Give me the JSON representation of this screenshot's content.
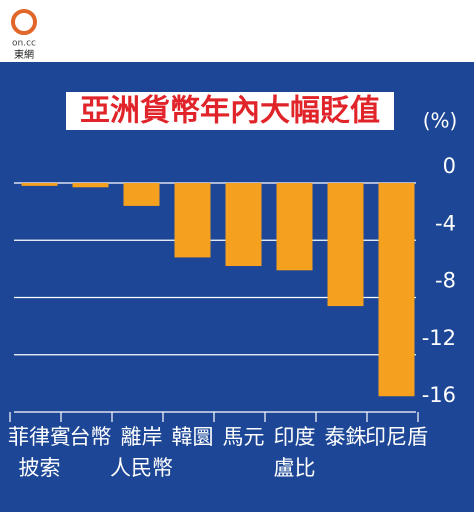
{
  "logo": {
    "mark": "on.cc",
    "name": "東網"
  },
  "chart_data": {
    "type": "bar",
    "title": "亞洲貨幣年內大幅貶值",
    "unit": "(%)",
    "categories": [
      "菲律賓\n披索",
      "台幣",
      "離岸\n人民幣",
      "韓圜",
      "馬元",
      "印度\n盧比",
      "泰銖",
      "印尼盾"
    ],
    "values": [
      -0.2,
      -0.3,
      -1.6,
      -5.2,
      -5.8,
      -6.1,
      -8.6,
      -14.9
    ],
    "color": "#f5a01f",
    "ylim": [
      -16,
      0
    ],
    "yticks": [
      0,
      -4,
      -8,
      -12,
      -16
    ],
    "grid": true
  }
}
